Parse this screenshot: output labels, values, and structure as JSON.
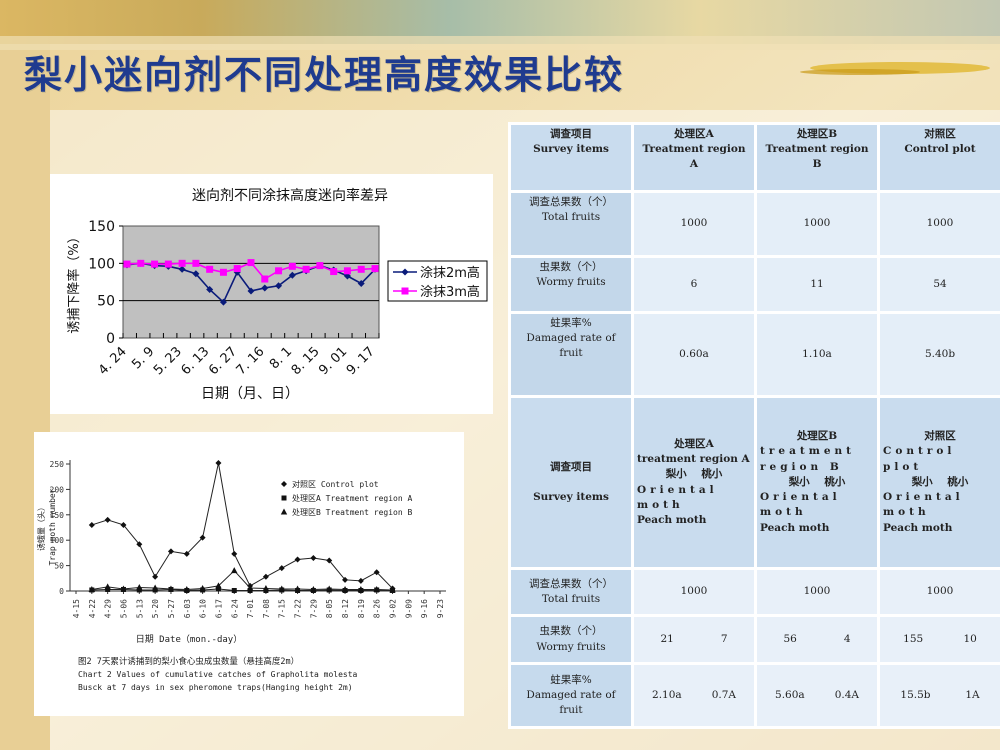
{
  "title": "梨小迷向剂不同处理高度效果比较",
  "colors": {
    "title": "#1f3b8f",
    "table_header": "#c9dcee",
    "table_cell": "#e4eef8",
    "series_2m": "#0a1b7a",
    "series_3m": "#ff00ff",
    "plot_area": "#c0c0c0"
  },
  "table": {
    "header": [
      {
        "zh": "调查项目",
        "en": "Survey items"
      },
      {
        "zh": "处理区A",
        "en": "Treatment region A"
      },
      {
        "zh": "处理区B",
        "en": "Treatment region B"
      },
      {
        "zh": "对照区",
        "en": "Control plot"
      }
    ],
    "rows": [
      {
        "zh": "调查总果数（个）",
        "en": "Total fruits",
        "values": [
          "1000",
          "1000",
          "1000"
        ]
      },
      {
        "zh": "虫果数（个）",
        "en": "Wormy fruits",
        "values": [
          "6",
          "11",
          "54"
        ]
      },
      {
        "zh": "蛀果率%",
        "en": "Damaged rate of fruit",
        "values": [
          "0.60a",
          "1.10a",
          "5.40b"
        ]
      }
    ],
    "header2": {
      "survey": {
        "zh": "调查项目",
        "en": "Survey items"
      },
      "groups": [
        {
          "zh": "处理区A",
          "en": "treatment region A",
          "pest_a_zh": "梨小",
          "pest_b_zh": "桃小",
          "pest_a_en": "Oriental moth",
          "pest_b_en": "Peach moth"
        },
        {
          "zh": "处理区B",
          "en": "treatment region B",
          "pest_a_zh": "梨小",
          "pest_b_zh": "桃小",
          "pest_a_en": "Oriental moth",
          "pest_b_en": "Peach moth"
        },
        {
          "zh": "对照区",
          "en": "Control plot",
          "pest_a_zh": "梨小",
          "pest_b_zh": "桃小",
          "pest_a_en": "Oriental moth",
          "pest_b_en": "Peach moth"
        }
      ]
    },
    "rows2": [
      {
        "zh": "调查总果数（个）",
        "en": "Total fruits",
        "values": [
          "1000",
          "1000",
          "1000"
        ]
      },
      {
        "zh": "虫果数（个）",
        "en": "Wormy fruits",
        "values": [
          [
            "21",
            "7"
          ],
          [
            "56",
            "4"
          ],
          [
            "155",
            "10"
          ]
        ]
      },
      {
        "zh": "蛀果率%",
        "en": "Damaged rate of fruit",
        "values": [
          [
            "2.10a",
            "0.7A"
          ],
          [
            "5.60a",
            "0.4A"
          ],
          [
            "15.5b",
            "1A"
          ]
        ]
      }
    ]
  },
  "chart_data": [
    {
      "type": "line",
      "title": "迷向剂不同涂抹高度迷向率差异",
      "xlabel": "日期（月、日）",
      "ylabel": "诱捕下降率（%）",
      "ylim": [
        0,
        150
      ],
      "yticks": [
        "150",
        "100",
        "50",
        "0"
      ],
      "xtick_labels": [
        "4. 24",
        "5. 9",
        "5. 23",
        "6. 13",
        "6. 27",
        "7. 16",
        "8. 1",
        "8. 15",
        "9. 01",
        "9. 17"
      ],
      "grid": true,
      "legend": "right",
      "series": [
        {
          "name": "涂抹2m高",
          "values": [
            98,
            100,
            97,
            96,
            92,
            86,
            65,
            48,
            88,
            63,
            67,
            70,
            84,
            90,
            97,
            91,
            83,
            73,
            92
          ]
        },
        {
          "name": "涂抹3m高",
          "values": [
            99,
            100,
            99,
            99,
            100,
            100,
            92,
            88,
            93,
            101,
            79,
            90,
            96,
            92,
            97,
            89,
            90,
            92,
            93
          ]
        }
      ]
    },
    {
      "type": "line",
      "xlabel": "日期 Date（mon.-day）",
      "ylabel": "诱蛾量（头）",
      "ylabel_en": "Trap moth number",
      "ylim": [
        0,
        250
      ],
      "yticks": [
        "250",
        "200",
        "150",
        "100",
        "50",
        "0"
      ],
      "x": [
        "4-15",
        "4-22",
        "4-29",
        "5-06",
        "5-13",
        "5-20",
        "5-27",
        "6-03",
        "6-10",
        "6-17",
        "6-24",
        "7-01",
        "7-08",
        "7-15",
        "7-22",
        "7-29",
        "8-05",
        "8-12",
        "8-19",
        "8-26",
        "9-02",
        "9-09",
        "9-16",
        "9-23"
      ],
      "legend": "top-right",
      "caption_zh": "图2  7天累计诱捕到的梨小食心虫成虫数量（悬挂高度2m）",
      "caption_en1": "Chart 2  Values of cumulative catches of Grapholita molesta",
      "caption_en2": "Busck at 7 days in sex pheromone traps(Hanging height 2m)",
      "series": [
        {
          "name": "对照区 Control plot",
          "values": [
            null,
            130,
            140,
            130,
            92,
            28,
            78,
            73,
            105,
            252,
            73,
            10,
            28,
            45,
            62,
            65,
            60,
            22,
            20,
            37,
            5,
            null,
            null,
            null
          ]
        },
        {
          "name": "处理区A Treatment region A",
          "values": [
            null,
            2,
            3,
            3,
            2,
            2,
            3,
            1,
            2,
            4,
            1,
            1,
            1,
            2,
            1,
            1,
            2,
            1,
            1,
            2,
            1,
            null,
            null,
            null
          ]
        },
        {
          "name": "处理区B Treatment region B",
          "values": [
            null,
            3,
            8,
            4,
            7,
            6,
            4,
            3,
            5,
            10,
            40,
            6,
            5,
            4,
            4,
            3,
            4,
            3,
            3,
            3,
            2,
            null,
            null,
            null
          ]
        }
      ]
    }
  ]
}
